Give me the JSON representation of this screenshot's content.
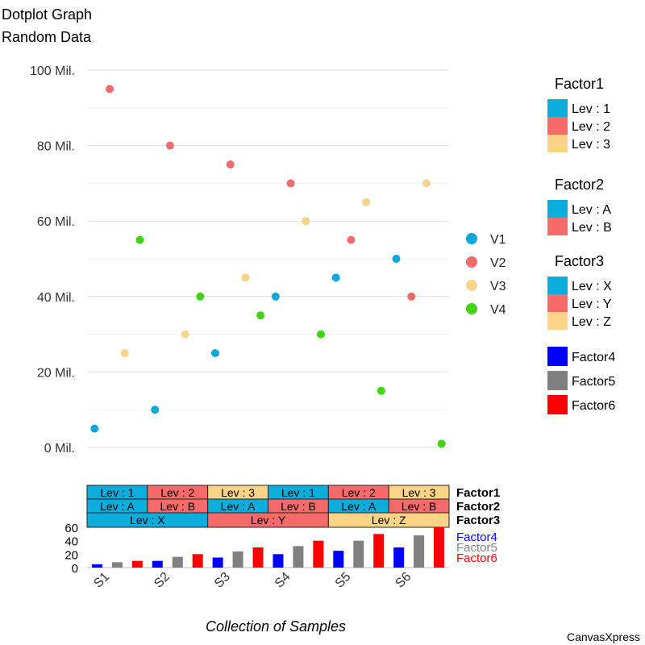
{
  "chart_data": {
    "type": "scatter",
    "title": "Dotplot Graph",
    "subtitle": "Random Data",
    "xlabel": "Collection of Samples",
    "ylabel": "",
    "ylim": [
      0,
      100000000
    ],
    "yticks": [
      {
        "value": 0,
        "label": "0 Mil."
      },
      {
        "value": 20000000,
        "label": "20 Mil."
      },
      {
        "value": 40000000,
        "label": "40 Mil."
      },
      {
        "value": 60000000,
        "label": "60 Mil."
      },
      {
        "value": 80000000,
        "label": "80 Mil."
      },
      {
        "value": 100000000,
        "label": "100 Mil."
      }
    ],
    "grid": true,
    "categories": [
      "S1",
      "S2",
      "S3",
      "S4",
      "S5",
      "S6"
    ],
    "series": [
      {
        "name": "V1",
        "color": "#0aa8d8",
        "values": [
          5000000,
          10000000,
          25000000,
          40000000,
          45000000,
          50000000
        ]
      },
      {
        "name": "V2",
        "color": "#f06b6b",
        "values": [
          95000000,
          80000000,
          75000000,
          70000000,
          55000000,
          40000000
        ]
      },
      {
        "name": "V3",
        "color": "#f8d48a",
        "values": [
          25000000,
          30000000,
          45000000,
          60000000,
          65000000,
          70000000
        ]
      },
      {
        "name": "V4",
        "color": "#41d411",
        "values": [
          55000000,
          40000000,
          35000000,
          30000000,
          15000000,
          1000000
        ]
      }
    ],
    "factors": {
      "Factor1": [
        "Lev : 1",
        "Lev : 2",
        "Lev : 3",
        "Lev : 1",
        "Lev : 2",
        "Lev : 3"
      ],
      "Factor2": [
        "Lev : A",
        "Lev : B",
        "Lev : A",
        "Lev : B",
        "Lev : A",
        "Lev : B"
      ],
      "Factor3": [
        "Lev : X",
        "Lev : X",
        "Lev : Y",
        "Lev : Y",
        "Lev : Z",
        "Lev : Z"
      ]
    },
    "factor_rows": [
      "Factor1",
      "Factor2",
      "Factor3"
    ],
    "factor_colors": [
      "#0aaddb",
      "#f66a6a",
      "#fbd487"
    ],
    "legend": {
      "series_position": "right",
      "factor_groups": [
        {
          "title": "Factor1",
          "levels": [
            "Lev : 1",
            "Lev : 2",
            "Lev : 3"
          ]
        },
        {
          "title": "Factor2",
          "levels": [
            "Lev : A",
            "Lev : B"
          ]
        },
        {
          "title": "Factor3",
          "levels": [
            "Lev : X",
            "Lev : Y",
            "Lev : Z"
          ]
        }
      ],
      "numeric_factors": [
        {
          "name": "Factor4",
          "color": "#0000ff"
        },
        {
          "name": "Factor5",
          "color": "#808080"
        },
        {
          "name": "Factor6",
          "color": "#ff0000"
        }
      ]
    },
    "numeric_factor_chart": {
      "type": "bar",
      "ylim": [
        0,
        60
      ],
      "yticks": [
        0,
        20,
        40,
        60
      ],
      "series": [
        {
          "name": "Factor4",
          "color": "#0000ff",
          "values": [
            5,
            10,
            15,
            20,
            25,
            30
          ]
        },
        {
          "name": "Factor5",
          "color": "#808080",
          "values": [
            8,
            16,
            24,
            32,
            40,
            48
          ]
        },
        {
          "name": "Factor6",
          "color": "#ff0000",
          "values": [
            10,
            20,
            30,
            40,
            50,
            60
          ]
        }
      ]
    },
    "credit": "CanvasXpress"
  }
}
